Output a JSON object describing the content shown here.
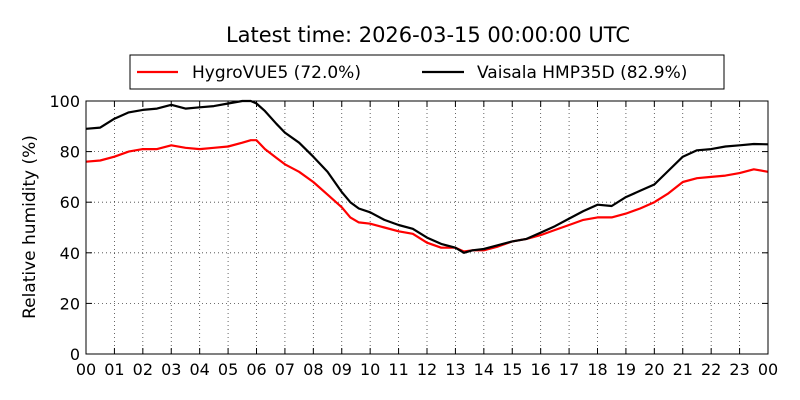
{
  "chart_data": {
    "type": "line",
    "title": "Latest time: 2026-03-15 00:00:00 UTC",
    "xlabel": "",
    "ylabel": "Relative humidity (%)",
    "ylim": [
      0,
      100
    ],
    "xlim": [
      0,
      24
    ],
    "yticks": [
      0,
      20,
      40,
      60,
      80,
      100
    ],
    "xtick_labels": [
      "00",
      "01",
      "02",
      "03",
      "04",
      "05",
      "06",
      "07",
      "08",
      "09",
      "10",
      "11",
      "12",
      "13",
      "14",
      "15",
      "16",
      "17",
      "18",
      "19",
      "20",
      "21",
      "22",
      "23",
      "00"
    ],
    "grid": true,
    "legend": {
      "position": "top-center",
      "entries": [
        "HygroVUE5 (72.0%)",
        "Vaisala HMP35D (82.9%)"
      ]
    },
    "series": [
      {
        "name": "HygroVUE5 (72.0%)",
        "color": "#ff0000",
        "x": [
          0,
          0.5,
          1,
          1.5,
          2,
          2.5,
          3,
          3.5,
          4,
          4.5,
          5,
          5.5,
          5.8,
          6,
          6.3,
          6.7,
          7,
          7.5,
          8,
          8.5,
          9,
          9.3,
          9.6,
          10,
          10.5,
          11,
          11.5,
          12,
          12.5,
          13,
          13.3,
          13.6,
          14,
          14.5,
          15,
          15.5,
          16,
          16.5,
          17,
          17.5,
          18,
          18.5,
          19,
          19.5,
          20,
          20.5,
          21,
          21.5,
          22,
          22.5,
          23,
          23.5,
          24
        ],
        "y": [
          76,
          76.5,
          78,
          80,
          81,
          81,
          82.5,
          81.5,
          81,
          81.5,
          82,
          83.5,
          84.5,
          84.5,
          81,
          77.5,
          75,
          72,
          68,
          63,
          58,
          54,
          52,
          51.5,
          50,
          48.5,
          47.5,
          44,
          42,
          42,
          40.5,
          41,
          41,
          42.5,
          44.5,
          45.5,
          47,
          49,
          51,
          53,
          54,
          54,
          55.5,
          57.5,
          60,
          63.5,
          68,
          69.5,
          70,
          70.5,
          71.5,
          73,
          72
        ]
      },
      {
        "name": "Vaisala HMP35D (82.9%)",
        "color": "#000000",
        "x": [
          0,
          0.5,
          1,
          1.5,
          2,
          2.5,
          3,
          3.5,
          4,
          4.5,
          5,
          5.5,
          5.8,
          6,
          6.3,
          6.7,
          7,
          7.5,
          8,
          8.5,
          9,
          9.3,
          9.6,
          10,
          10.5,
          11,
          11.5,
          12,
          12.5,
          13,
          13.3,
          13.6,
          14,
          14.5,
          15,
          15.5,
          16,
          16.5,
          17,
          17.5,
          18,
          18.5,
          19,
          19.5,
          20,
          20.5,
          21,
          21.5,
          22,
          22.5,
          23,
          23.5,
          24
        ],
        "y": [
          89,
          89.5,
          93,
          95.5,
          96.5,
          97,
          98.5,
          97,
          97.5,
          98,
          99,
          100,
          100,
          99,
          96,
          91,
          87.5,
          83.5,
          78,
          72,
          64,
          60,
          57.5,
          56,
          53,
          51,
          49.5,
          46,
          43.5,
          42,
          40,
          41,
          41.5,
          43,
          44.5,
          45.5,
          48,
          50.5,
          53.5,
          56.5,
          59,
          58.5,
          62,
          64.5,
          67,
          72.5,
          78,
          80.5,
          81,
          82,
          82.5,
          83,
          82.9
        ]
      }
    ]
  }
}
